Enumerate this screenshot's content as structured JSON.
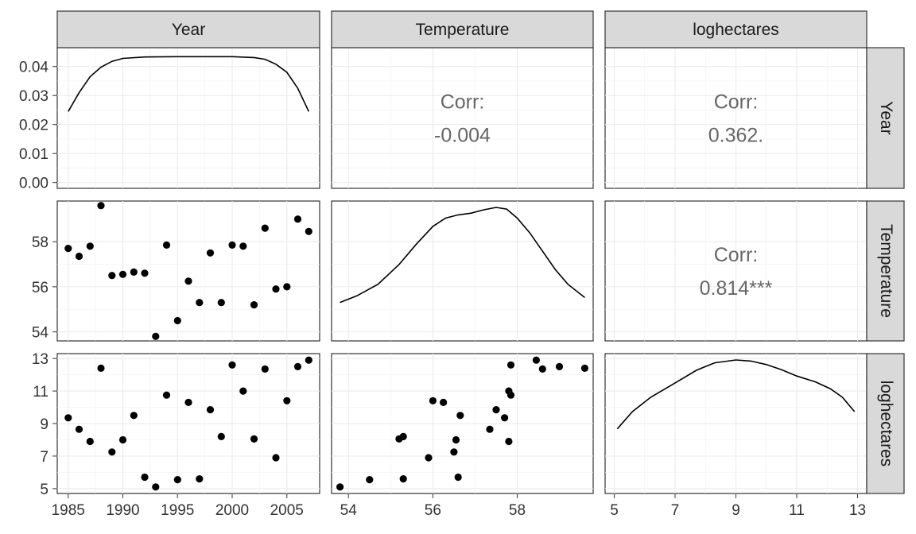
{
  "chart_data": {
    "type": "scatter-matrix",
    "variables": [
      "Year",
      "Temperature",
      "loghectares"
    ],
    "axes": {
      "Year": {
        "range": [
          1984,
          2008
        ],
        "ticks": [
          1985,
          1990,
          1995,
          2000,
          2005
        ],
        "tick_labels": [
          "1985",
          "1990",
          "1995",
          "2000",
          "2005"
        ]
      },
      "Temperature": {
        "range": [
          53.6,
          59.8
        ],
        "ticks": [
          54,
          56,
          58
        ],
        "tick_labels": [
          "54",
          "56",
          "58"
        ]
      },
      "loghectares": {
        "range": [
          4.7,
          13.3
        ],
        "ticks": [
          5,
          7,
          9,
          11,
          13
        ],
        "tick_labels": [
          "5",
          "7",
          "9",
          "11",
          "13"
        ]
      },
      "density_year_y": {
        "range": [
          -0.002,
          0.0465
        ],
        "ticks": [
          0,
          0.01,
          0.02,
          0.03,
          0.04
        ],
        "tick_labels": [
          "0.00",
          "0.01",
          "0.02",
          "0.03",
          "0.04"
        ]
      }
    },
    "points": [
      {
        "Year": 1985,
        "Temperature": 57.7,
        "loghectares": 9.35
      },
      {
        "Year": 1986,
        "Temperature": 57.35,
        "loghectares": 8.65
      },
      {
        "Year": 1987,
        "Temperature": 57.8,
        "loghectares": 7.9
      },
      {
        "Year": 1988,
        "Temperature": 59.6,
        "loghectares": 12.4
      },
      {
        "Year": 1989,
        "Temperature": 56.5,
        "loghectares": 7.25
      },
      {
        "Year": 1990,
        "Temperature": 56.55,
        "loghectares": 8.0
      },
      {
        "Year": 1991,
        "Temperature": 56.65,
        "loghectares": 9.5
      },
      {
        "Year": 1992,
        "Temperature": 56.6,
        "loghectares": 5.7
      },
      {
        "Year": 1993,
        "Temperature": 53.8,
        "loghectares": 5.1
      },
      {
        "Year": 1994,
        "Temperature": 57.85,
        "loghectares": 10.75
      },
      {
        "Year": 1995,
        "Temperature": 54.5,
        "loghectares": 5.55
      },
      {
        "Year": 1996,
        "Temperature": 56.25,
        "loghectares": 10.3
      },
      {
        "Year": 1997,
        "Temperature": 55.3,
        "loghectares": 5.6
      },
      {
        "Year": 1998,
        "Temperature": 57.5,
        "loghectares": 9.85
      },
      {
        "Year": 1999,
        "Temperature": 55.3,
        "loghectares": 8.2
      },
      {
        "Year": 2000,
        "Temperature": 57.85,
        "loghectares": 12.6
      },
      {
        "Year": 2001,
        "Temperature": 57.8,
        "loghectares": 11.0
      },
      {
        "Year": 2002,
        "Temperature": 55.2,
        "loghectares": 8.05
      },
      {
        "Year": 2003,
        "Temperature": 58.6,
        "loghectares": 12.35
      },
      {
        "Year": 2004,
        "Temperature": 55.9,
        "loghectares": 6.9
      },
      {
        "Year": 2005,
        "Temperature": 56.0,
        "loghectares": 10.4
      },
      {
        "Year": 2006,
        "Temperature": 59.0,
        "loghectares": 12.5
      },
      {
        "Year": 2007,
        "Temperature": 58.45,
        "loghectares": 12.9
      }
    ],
    "correlations": [
      {
        "row": "Year",
        "col": "Temperature",
        "label": "Corr:",
        "value": "-0.004"
      },
      {
        "row": "Year",
        "col": "loghectares",
        "label": "Corr:",
        "value": "0.362."
      },
      {
        "row": "Temperature",
        "col": "loghectares",
        "label": "Corr:",
        "value": "0.814***"
      }
    ],
    "densities": {
      "Year": [
        [
          1985,
          0.0245
        ],
        [
          1986,
          0.031
        ],
        [
          1987,
          0.0365
        ],
        [
          1988,
          0.0398
        ],
        [
          1989,
          0.0418
        ],
        [
          1990,
          0.0428
        ],
        [
          1992,
          0.0433
        ],
        [
          1995,
          0.0434
        ],
        [
          2000,
          0.0434
        ],
        [
          2002,
          0.0431
        ],
        [
          2003,
          0.0425
        ],
        [
          2004,
          0.0408
        ],
        [
          2005,
          0.038
        ],
        [
          2006,
          0.0325
        ],
        [
          2007,
          0.0245
        ]
      ],
      "Temperature": [
        [
          53.8,
          0.05
        ],
        [
          54.2,
          0.09
        ],
        [
          54.7,
          0.16
        ],
        [
          55.2,
          0.28
        ],
        [
          55.6,
          0.4
        ],
        [
          56.0,
          0.51
        ],
        [
          56.3,
          0.56
        ],
        [
          56.6,
          0.58
        ],
        [
          56.9,
          0.59
        ],
        [
          57.2,
          0.61
        ],
        [
          57.5,
          0.625
        ],
        [
          57.75,
          0.615
        ],
        [
          58.0,
          0.56
        ],
        [
          58.3,
          0.47
        ],
        [
          58.6,
          0.36
        ],
        [
          58.9,
          0.25
        ],
        [
          59.2,
          0.16
        ],
        [
          59.6,
          0.08
        ]
      ],
      "loghectares": [
        [
          5.1,
          0.06
        ],
        [
          5.6,
          0.09
        ],
        [
          6.2,
          0.115
        ],
        [
          7.0,
          0.14
        ],
        [
          7.7,
          0.162
        ],
        [
          8.3,
          0.175
        ],
        [
          9.0,
          0.18
        ],
        [
          9.5,
          0.178
        ],
        [
          10.0,
          0.172
        ],
        [
          10.5,
          0.163
        ],
        [
          11.0,
          0.152
        ],
        [
          11.6,
          0.142
        ],
        [
          12.1,
          0.13
        ],
        [
          12.5,
          0.115
        ],
        [
          12.9,
          0.09
        ]
      ]
    }
  }
}
